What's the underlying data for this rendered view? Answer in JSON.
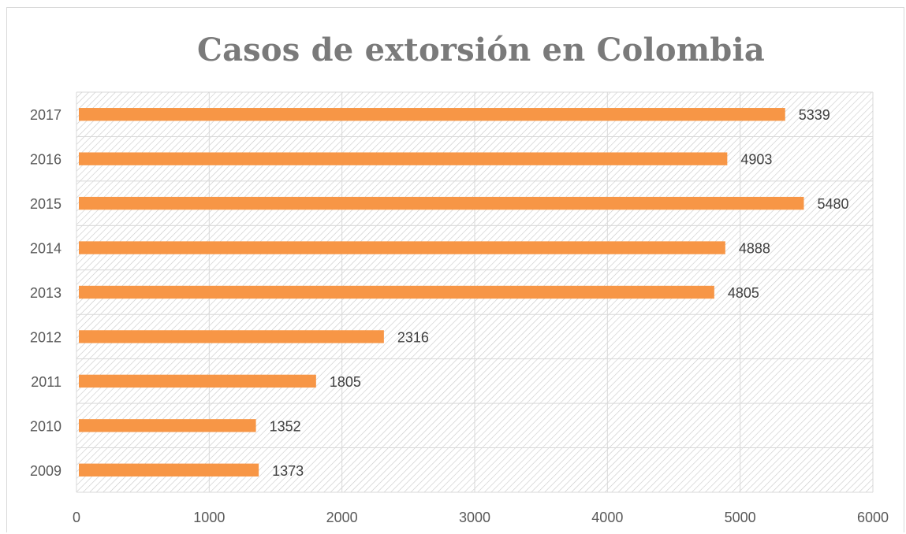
{
  "chart_data": {
    "type": "bar",
    "orientation": "horizontal",
    "title": "Casos de extorsión en Colombia",
    "xlabel": "",
    "ylabel": "",
    "categories": [
      "2009",
      "2010",
      "2011",
      "2012",
      "2013",
      "2014",
      "2015",
      "2016",
      "2017"
    ],
    "values": [
      1373,
      1352,
      1805,
      2316,
      4805,
      4888,
      5480,
      4903,
      5339
    ],
    "xlim": [
      0,
      6000
    ],
    "x_ticks": [
      0,
      1000,
      2000,
      3000,
      4000,
      5000,
      6000
    ],
    "grid": true,
    "data_labels": true,
    "bar_color": "#F79646",
    "plot_background": "diagonal hatch pattern"
  }
}
